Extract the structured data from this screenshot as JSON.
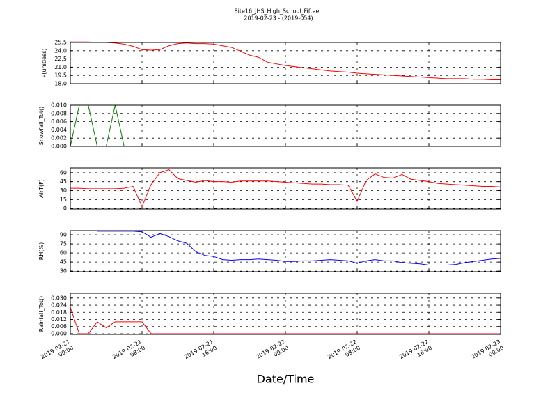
{
  "chart_data": {
    "type": "line",
    "title": "Site16_JHS_High_School_Fifteen",
    "subtitle": "2019-02-23 - (2019-054)",
    "xlabel": "Date/Time",
    "grid": true,
    "xlim": [
      "2019-02-21 00:00",
      "2019-02-23 00:00"
    ],
    "xticks": [
      "2019-02-21 00:00",
      "2019-02-21 08:00",
      "2019-02-21 16:00",
      "2019-02-22 00:00",
      "2019-02-22 08:00",
      "2019-02-22 16:00",
      "2019-02-23 00:00"
    ],
    "x": [
      "2019-02-21 00:00",
      "2019-02-21 01:00",
      "2019-02-21 02:00",
      "2019-02-21 03:00",
      "2019-02-21 04:00",
      "2019-02-21 05:00",
      "2019-02-21 06:00",
      "2019-02-21 07:00",
      "2019-02-21 08:00",
      "2019-02-21 09:00",
      "2019-02-21 10:00",
      "2019-02-21 11:00",
      "2019-02-21 12:00",
      "2019-02-21 13:00",
      "2019-02-21 14:00",
      "2019-02-21 15:00",
      "2019-02-21 16:00",
      "2019-02-21 17:00",
      "2019-02-21 18:00",
      "2019-02-21 19:00",
      "2019-02-21 20:00",
      "2019-02-21 21:00",
      "2019-02-21 22:00",
      "2019-02-21 23:00",
      "2019-02-22 00:00",
      "2019-02-22 01:00",
      "2019-02-22 02:00",
      "2019-02-22 03:00",
      "2019-02-22 04:00",
      "2019-02-22 05:00",
      "2019-02-22 06:00",
      "2019-02-22 07:00",
      "2019-02-22 08:00",
      "2019-02-22 09:00",
      "2019-02-22 10:00",
      "2019-02-22 11:00",
      "2019-02-22 12:00",
      "2019-02-22 13:00",
      "2019-02-22 14:00",
      "2019-02-22 15:00",
      "2019-02-22 16:00",
      "2019-02-22 17:00",
      "2019-02-22 18:00",
      "2019-02-22 19:00",
      "2019-02-22 20:00",
      "2019-02-22 21:00",
      "2019-02-22 22:00",
      "2019-02-22 23:00",
      "2019-02-23 00:00"
    ],
    "panels": [
      {
        "ylabel": "P(unitless)",
        "ylim": [
          18,
          25.5
        ],
        "yticks": [
          {
            "value": 18,
            "label": "18.0"
          },
          {
            "value": 19.5,
            "label": "19.5"
          },
          {
            "value": 21,
            "label": "21.0"
          },
          {
            "value": 22.5,
            "label": "22.5"
          },
          {
            "value": 24,
            "label": "24.0"
          },
          {
            "value": 25.5,
            "label": "25.5"
          }
        ],
        "series": [
          {
            "color": "#ff0000",
            "values": [
              25.6,
              25.6,
              25.6,
              25.5,
              25.5,
              25.4,
              25.2,
              24.8,
              24.2,
              24.1,
              24.2,
              24.9,
              25.3,
              25.4,
              25.3,
              25.3,
              25.2,
              24.9,
              24.6,
              23.9,
              23.2,
              22.8,
              21.9,
              21.6,
              21.3,
              21.1,
              20.9,
              20.7,
              20.5,
              20.3,
              20.2,
              20.1,
              19.9,
              19.8,
              19.7,
              19.6,
              19.5,
              19.4,
              19.3,
              19.2,
              19.1,
              19.0,
              18.9,
              18.9,
              18.9,
              18.8,
              18.8,
              18.7,
              18.7
            ]
          }
        ]
      },
      {
        "ylabel": "Snowfall_Tot()",
        "ylim": [
          0,
          0.01
        ],
        "yticks": [
          {
            "value": 0,
            "label": "0.000"
          },
          {
            "value": 0.002,
            "label": "0.002"
          },
          {
            "value": 0.004,
            "label": "0.004"
          },
          {
            "value": 0.006,
            "label": "0.006"
          },
          {
            "value": 0.008,
            "label": "0.008"
          },
          {
            "value": 0.01,
            "label": "0.010"
          }
        ],
        "series": [
          {
            "color": "#007f00",
            "values": [
              0,
              0.01,
              0.01,
              0,
              0,
              0.01,
              0,
              0,
              0,
              0,
              0,
              0,
              0,
              0,
              0,
              0,
              0,
              0,
              0,
              0,
              0,
              0,
              0,
              0,
              0,
              0,
              0,
              0,
              0,
              0,
              0,
              0,
              0,
              0,
              0,
              0,
              0,
              0,
              0,
              0,
              0,
              0,
              0,
              0,
              0,
              0,
              0,
              0,
              0
            ]
          }
        ]
      },
      {
        "ylabel": "AirT(F)",
        "ylim": [
          -1,
          68
        ],
        "yticks": [
          0,
          15,
          30,
          45,
          60
        ],
        "series": [
          {
            "color": "#ff0000",
            "values": [
              34,
              34,
              33,
              33,
              33,
              33,
              34,
              37,
              3,
              40,
              60,
              65,
              50,
              47,
              44,
              47,
              45,
              45,
              44,
              46,
              46,
              46,
              46,
              45,
              44,
              43,
              42,
              41,
              41,
              40,
              40,
              39,
              12,
              47,
              58,
              52,
              51,
              57,
              49,
              47,
              45,
              42,
              41,
              40,
              39,
              38,
              37,
              37,
              36
            ]
          }
        ]
      },
      {
        "ylabel": "RH(%)",
        "ylim": [
          29,
          97
        ],
        "yticks": [
          30,
          45,
          60,
          75,
          90
        ],
        "series": [
          {
            "color": "#0000ff",
            "values": [
              null,
              null,
              null,
              96,
              96,
              96,
              96,
              96,
              95,
              86,
              92,
              87,
              80,
              76,
              62,
              56,
              54,
              49,
              48,
              49,
              49,
              50,
              49,
              48,
              46,
              46,
              47,
              47,
              48,
              49,
              48,
              47,
              43,
              47,
              49,
              47,
              47,
              44,
              43,
              42,
              40,
              40,
              40,
              41,
              44,
              46,
              48,
              50,
              51
            ]
          }
        ]
      },
      {
        "ylabel": "Rainfall_Tot()",
        "ylim": [
          -0.0006,
          0.034
        ],
        "yticks": [
          {
            "value": 0,
            "label": "0.000"
          },
          {
            "value": 0.006,
            "label": "0.006"
          },
          {
            "value": 0.012,
            "label": "0.012"
          },
          {
            "value": 0.018,
            "label": "0.018"
          },
          {
            "value": 0.024,
            "label": "0.024"
          },
          {
            "value": 0.03,
            "label": "0.030"
          }
        ],
        "series": [
          {
            "color": "#ff0000",
            "values": [
              0.022,
              0,
              0,
              0.01,
              0.005,
              0.01,
              0.01,
              0.01,
              0.01,
              0,
              0,
              0,
              0,
              0,
              0,
              0,
              0,
              0,
              0,
              0,
              0,
              0,
              0,
              0,
              0,
              0,
              0,
              0,
              0,
              0,
              0,
              0,
              0,
              0,
              0,
              0,
              0,
              0,
              0,
              0,
              0,
              0,
              0,
              0,
              0,
              0,
              0,
              0,
              0
            ]
          }
        ]
      }
    ]
  }
}
